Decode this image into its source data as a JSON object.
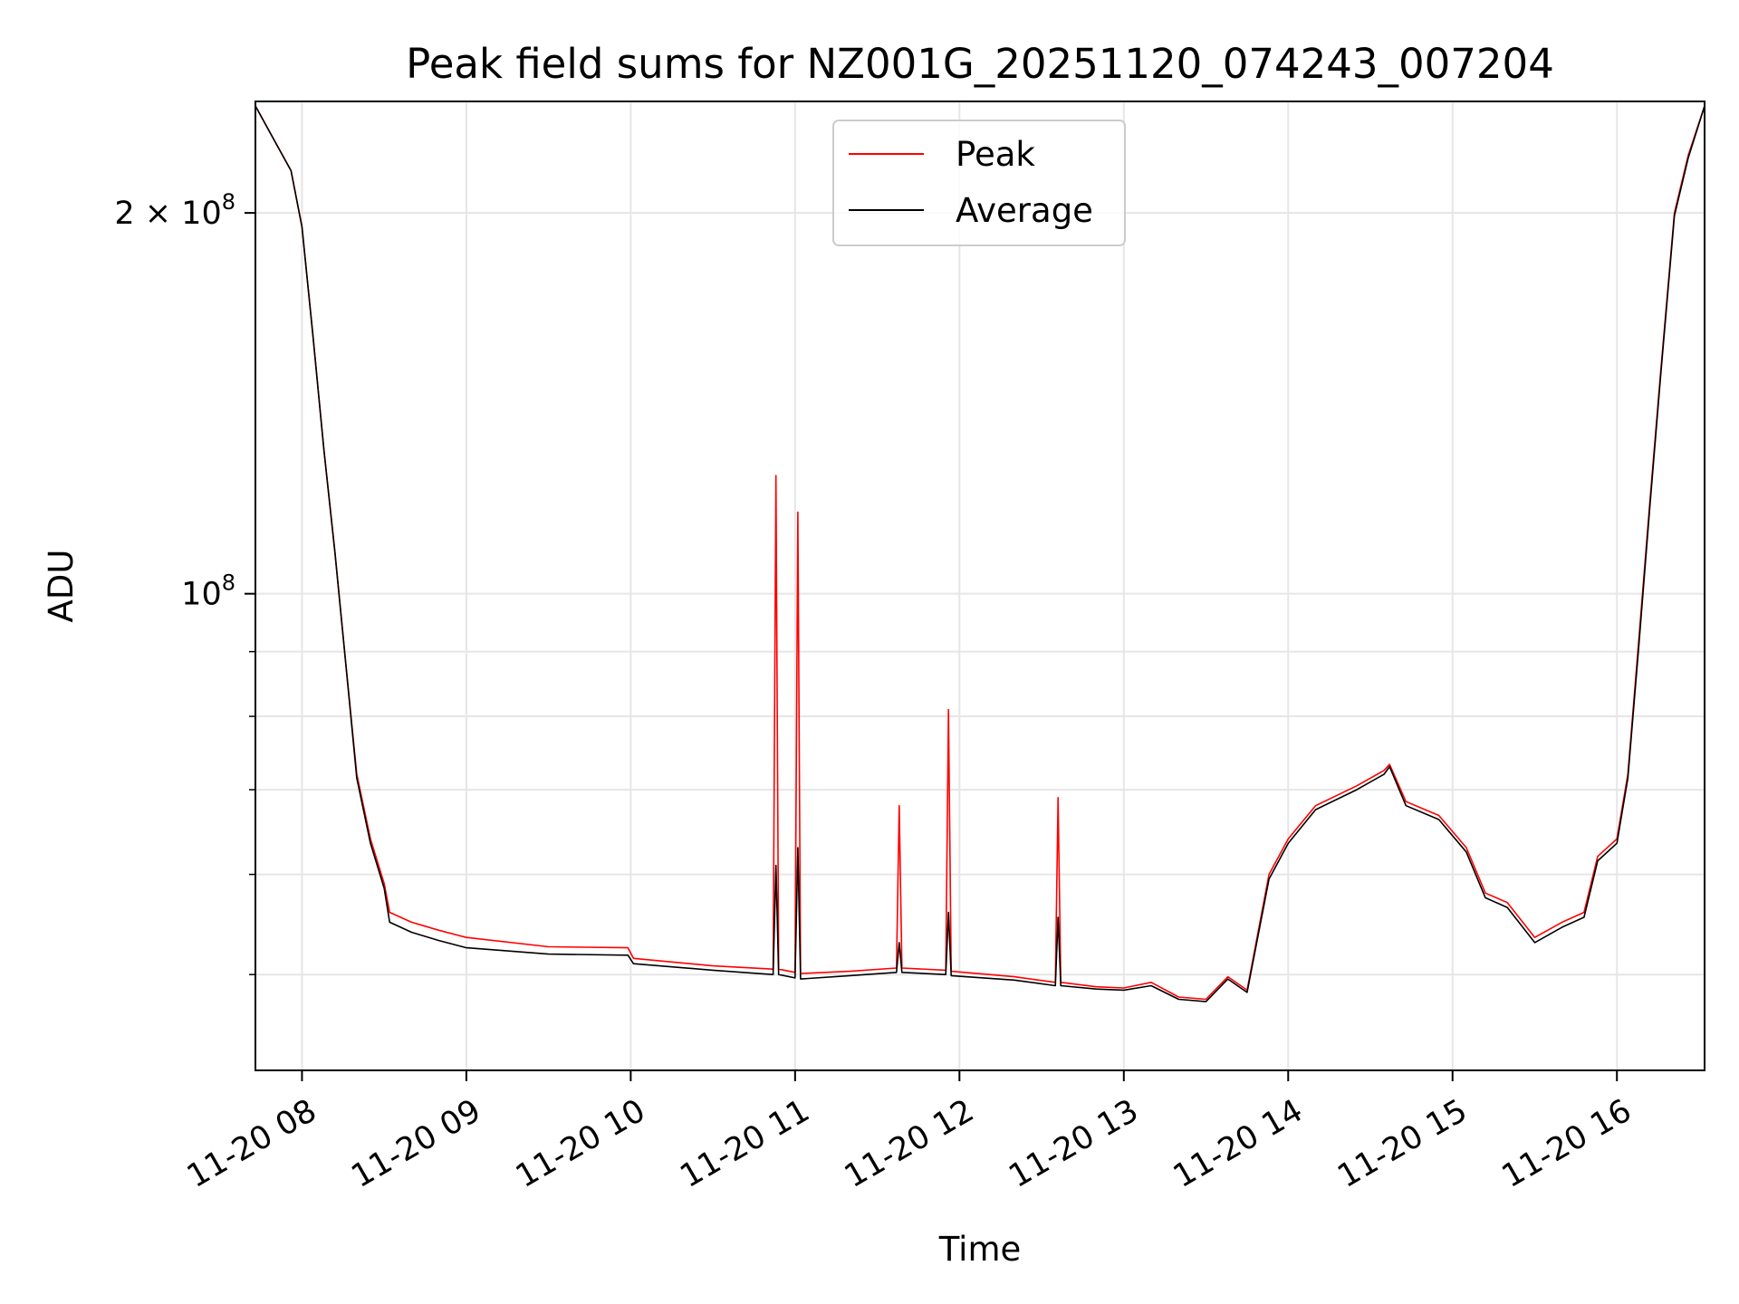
{
  "chart_data": {
    "type": "line",
    "title": "Peak field sums for NZ001G_20251120_074243_007204",
    "xlabel": "Time",
    "ylabel": "ADU",
    "y_scale": "log",
    "x_range": [
      "2025-11-20T07:43",
      "2025-11-20T16:32"
    ],
    "y_range": [
      42000000,
      245000000
    ],
    "grid": true,
    "legend_position": "top-center",
    "x_ticks": [
      {
        "value": "2025-11-20T08:00",
        "label": "11-20 08"
      },
      {
        "value": "2025-11-20T09:00",
        "label": "11-20 09"
      },
      {
        "value": "2025-11-20T10:00",
        "label": "11-20 10"
      },
      {
        "value": "2025-11-20T11:00",
        "label": "11-20 11"
      },
      {
        "value": "2025-11-20T12:00",
        "label": "11-20 12"
      },
      {
        "value": "2025-11-20T13:00",
        "label": "11-20 13"
      },
      {
        "value": "2025-11-20T14:00",
        "label": "11-20 14"
      },
      {
        "value": "2025-11-20T15:00",
        "label": "11-20 15"
      },
      {
        "value": "2025-11-20T16:00",
        "label": "11-20 16"
      }
    ],
    "y_ticks": [
      {
        "value": 100000000,
        "base": "10",
        "exp": "8",
        "mantissa": ""
      },
      {
        "value": 200000000,
        "base": "10",
        "exp": "8",
        "mantissa": "2 × "
      }
    ],
    "series": [
      {
        "name": "Peak",
        "color": "#ff0000",
        "points": [
          [
            "2025-11-20T07:43",
            243000000
          ],
          [
            "2025-11-20T07:50",
            228000000
          ],
          [
            "2025-11-20T07:56",
            216000000
          ],
          [
            "2025-11-20T08:00",
            195000000
          ],
          [
            "2025-11-20T08:04",
            160000000
          ],
          [
            "2025-11-20T08:08",
            130000000
          ],
          [
            "2025-11-20T08:12",
            108000000
          ],
          [
            "2025-11-20T08:16",
            88000000
          ],
          [
            "2025-11-20T08:20",
            72000000
          ],
          [
            "2025-11-20T08:25",
            64000000
          ],
          [
            "2025-11-20T08:30",
            59000000
          ],
          [
            "2025-11-20T08:32",
            56000000
          ],
          [
            "2025-11-20T08:40",
            55000000
          ],
          [
            "2025-11-20T08:50",
            54200000
          ],
          [
            "2025-11-20T09:00",
            53500000
          ],
          [
            "2025-11-20T09:30",
            52600000
          ],
          [
            "2025-11-20T09:59",
            52500000
          ],
          [
            "2025-11-20T10:01",
            51500000
          ],
          [
            "2025-11-20T10:30",
            50800000
          ],
          [
            "2025-11-20T10:52",
            50500000
          ],
          [
            "2025-11-20T10:53",
            124000000
          ],
          [
            "2025-11-20T10:54",
            50500000
          ],
          [
            "2025-11-20T11:00",
            50200000
          ],
          [
            "2025-11-20T11:01",
            116000000
          ],
          [
            "2025-11-20T11:02",
            50100000
          ],
          [
            "2025-11-20T11:20",
            50300000
          ],
          [
            "2025-11-20T11:37",
            50600000
          ],
          [
            "2025-11-20T11:38",
            68000000
          ],
          [
            "2025-11-20T11:39",
            50600000
          ],
          [
            "2025-11-20T11:55",
            50400000
          ],
          [
            "2025-11-20T11:56",
            81000000
          ],
          [
            "2025-11-20T11:57",
            50300000
          ],
          [
            "2025-11-20T12:20",
            49800000
          ],
          [
            "2025-11-20T12:35",
            49300000
          ],
          [
            "2025-11-20T12:36",
            69000000
          ],
          [
            "2025-11-20T12:37",
            49300000
          ],
          [
            "2025-11-20T12:50",
            48900000
          ],
          [
            "2025-11-20T13:00",
            48800000
          ],
          [
            "2025-11-20T13:10",
            49300000
          ],
          [
            "2025-11-20T13:20",
            48000000
          ],
          [
            "2025-11-20T13:30",
            47800000
          ],
          [
            "2025-11-20T13:38",
            49800000
          ],
          [
            "2025-11-20T13:45",
            48600000
          ],
          [
            "2025-11-20T13:53",
            60000000
          ],
          [
            "2025-11-20T14:00",
            64000000
          ],
          [
            "2025-11-20T14:10",
            68000000
          ],
          [
            "2025-11-20T14:25",
            70500000
          ],
          [
            "2025-11-20T14:35",
            72500000
          ],
          [
            "2025-11-20T14:37",
            73300000
          ],
          [
            "2025-11-20T14:43",
            68500000
          ],
          [
            "2025-11-20T14:55",
            66800000
          ],
          [
            "2025-11-20T15:05",
            63000000
          ],
          [
            "2025-11-20T15:12",
            58000000
          ],
          [
            "2025-11-20T15:20",
            57000000
          ],
          [
            "2025-11-20T15:30",
            53500000
          ],
          [
            "2025-11-20T15:40",
            55000000
          ],
          [
            "2025-11-20T15:48",
            56000000
          ],
          [
            "2025-11-20T15:53",
            62000000
          ],
          [
            "2025-11-20T16:00",
            64000000
          ],
          [
            "2025-11-20T16:04",
            72000000
          ],
          [
            "2025-11-20T16:08",
            92000000
          ],
          [
            "2025-11-20T16:12",
            118000000
          ],
          [
            "2025-11-20T16:16",
            150000000
          ],
          [
            "2025-11-20T16:21",
            200000000
          ],
          [
            "2025-11-20T16:26",
            222000000
          ],
          [
            "2025-11-20T16:32",
            243000000
          ]
        ]
      },
      {
        "name": "Average",
        "color": "#000000",
        "points": [
          [
            "2025-11-20T07:43",
            243000000
          ],
          [
            "2025-11-20T07:50",
            228000000
          ],
          [
            "2025-11-20T07:56",
            216000000
          ],
          [
            "2025-11-20T08:00",
            195000000
          ],
          [
            "2025-11-20T08:04",
            160000000
          ],
          [
            "2025-11-20T08:08",
            130000000
          ],
          [
            "2025-11-20T08:12",
            108000000
          ],
          [
            "2025-11-20T08:16",
            88000000
          ],
          [
            "2025-11-20T08:20",
            71500000
          ],
          [
            "2025-11-20T08:25",
            63500000
          ],
          [
            "2025-11-20T08:30",
            58500000
          ],
          [
            "2025-11-20T08:32",
            55000000
          ],
          [
            "2025-11-20T08:40",
            54000000
          ],
          [
            "2025-11-20T08:50",
            53200000
          ],
          [
            "2025-11-20T09:00",
            52500000
          ],
          [
            "2025-11-20T09:30",
            51900000
          ],
          [
            "2025-11-20T09:59",
            51800000
          ],
          [
            "2025-11-20T10:01",
            51000000
          ],
          [
            "2025-11-20T10:30",
            50400000
          ],
          [
            "2025-11-20T10:52",
            50000000
          ],
          [
            "2025-11-20T10:53",
            61000000
          ],
          [
            "2025-11-20T10:54",
            50000000
          ],
          [
            "2025-11-20T11:00",
            49700000
          ],
          [
            "2025-11-20T11:01",
            63000000
          ],
          [
            "2025-11-20T11:02",
            49600000
          ],
          [
            "2025-11-20T11:20",
            49900000
          ],
          [
            "2025-11-20T11:37",
            50200000
          ],
          [
            "2025-11-20T11:38",
            53000000
          ],
          [
            "2025-11-20T11:39",
            50200000
          ],
          [
            "2025-11-20T11:55",
            50000000
          ],
          [
            "2025-11-20T11:56",
            56000000
          ],
          [
            "2025-11-20T11:57",
            49900000
          ],
          [
            "2025-11-20T12:20",
            49500000
          ],
          [
            "2025-11-20T12:35",
            49000000
          ],
          [
            "2025-11-20T12:36",
            55500000
          ],
          [
            "2025-11-20T12:37",
            49000000
          ],
          [
            "2025-11-20T12:50",
            48700000
          ],
          [
            "2025-11-20T13:00",
            48600000
          ],
          [
            "2025-11-20T13:10",
            49000000
          ],
          [
            "2025-11-20T13:20",
            47800000
          ],
          [
            "2025-11-20T13:30",
            47600000
          ],
          [
            "2025-11-20T13:38",
            49600000
          ],
          [
            "2025-11-20T13:45",
            48400000
          ],
          [
            "2025-11-20T13:53",
            59500000
          ],
          [
            "2025-11-20T14:00",
            63500000
          ],
          [
            "2025-11-20T14:10",
            67500000
          ],
          [
            "2025-11-20T14:25",
            70000000
          ],
          [
            "2025-11-20T14:35",
            72000000
          ],
          [
            "2025-11-20T14:37",
            73000000
          ],
          [
            "2025-11-20T14:43",
            68000000
          ],
          [
            "2025-11-20T14:55",
            66300000
          ],
          [
            "2025-11-20T15:05",
            62500000
          ],
          [
            "2025-11-20T15:12",
            57500000
          ],
          [
            "2025-11-20T15:20",
            56500000
          ],
          [
            "2025-11-20T15:30",
            53000000
          ],
          [
            "2025-11-20T15:40",
            54500000
          ],
          [
            "2025-11-20T15:48",
            55500000
          ],
          [
            "2025-11-20T15:53",
            61500000
          ],
          [
            "2025-11-20T16:00",
            63500000
          ],
          [
            "2025-11-20T16:04",
            71500000
          ],
          [
            "2025-11-20T16:08",
            91000000
          ],
          [
            "2025-11-20T16:12",
            117000000
          ],
          [
            "2025-11-20T16:16",
            149000000
          ],
          [
            "2025-11-20T16:21",
            199000000
          ],
          [
            "2025-11-20T16:26",
            221000000
          ],
          [
            "2025-11-20T16:32",
            243000000
          ]
        ]
      }
    ]
  }
}
